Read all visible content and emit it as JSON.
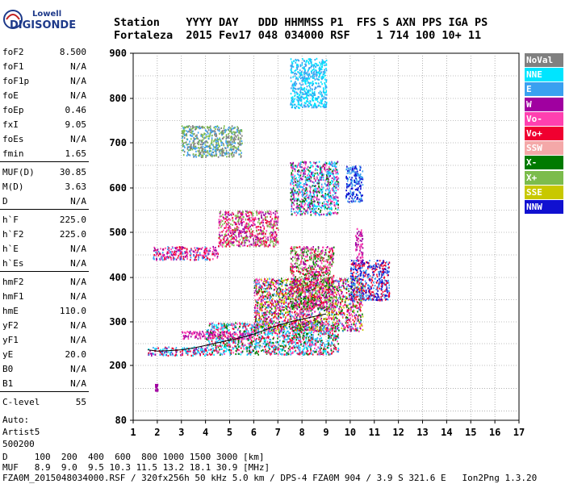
{
  "logo": {
    "line1": "Lowell",
    "line2": "DIGISONDE"
  },
  "header": {
    "line1": "Station    YYYY DAY   DDD HHMMSS P1  FFS S AXN PPS IGA PS",
    "line2": "Fortaleza  2015 Fev17 048 034000 RSF    1 714 100 10+ 11"
  },
  "params": {
    "group1": [
      {
        "k": "foF2",
        "v": "8.500"
      },
      {
        "k": "foF1",
        "v": "N/A"
      },
      {
        "k": "foF1p",
        "v": "N/A"
      },
      {
        "k": "foE",
        "v": "N/A"
      },
      {
        "k": "foEp",
        "v": "0.46"
      },
      {
        "k": "fxI",
        "v": "9.05"
      },
      {
        "k": "foEs",
        "v": "N/A"
      },
      {
        "k": "fmin",
        "v": "1.65"
      }
    ],
    "group2": [
      {
        "k": "MUF(D)",
        "v": "30.85"
      },
      {
        "k": "M(D)",
        "v": "3.63"
      },
      {
        "k": "D",
        "v": "N/A"
      }
    ],
    "group3": [
      {
        "k": "h`F",
        "v": "225.0"
      },
      {
        "k": "h`F2",
        "v": "225.0"
      },
      {
        "k": "h`E",
        "v": "N/A"
      },
      {
        "k": "h`Es",
        "v": "N/A"
      }
    ],
    "group4": [
      {
        "k": "hmF2",
        "v": "N/A"
      },
      {
        "k": "hmF1",
        "v": "N/A"
      },
      {
        "k": "hmE",
        "v": "110.0"
      },
      {
        "k": "yF2",
        "v": "N/A"
      },
      {
        "k": "yF1",
        "v": "N/A"
      },
      {
        "k": "yE",
        "v": "20.0"
      },
      {
        "k": "B0",
        "v": "N/A"
      },
      {
        "k": "B1",
        "v": "N/A"
      }
    ],
    "clevel": {
      "k": "C-level",
      "v": "55"
    },
    "auto": {
      "line1": "Auto:",
      "line2": "Artist5",
      "line3": "500200"
    }
  },
  "legend": [
    {
      "label": "NoVal",
      "color": "#808080"
    },
    {
      "label": "NNE",
      "color": "#00e5ff"
    },
    {
      "label": "E",
      "color": "#3aa0f0"
    },
    {
      "label": "W",
      "color": "#a000a0"
    },
    {
      "label": "Vo-",
      "color": "#ff40b0"
    },
    {
      "label": "Vo+",
      "color": "#f00030"
    },
    {
      "label": "SSW",
      "color": "#f4a8a8"
    },
    {
      "label": "X-",
      "color": "#007a00"
    },
    {
      "label": "X+",
      "color": "#7cbc4c"
    },
    {
      "label": "SSE",
      "color": "#c8c800"
    },
    {
      "label": "NNW",
      "color": "#1010d0"
    }
  ],
  "footer": {
    "line1": "D     100  200  400  600  800 1000 1500 3000 [km]",
    "line2": "MUF   8.9  9.0  9.5 10.3 11.5 13.2 18.1 30.9 [MHz]",
    "line3": "FZA0M_2015048034000.RSF / 320fx256h 50 kHz 5.0 km / DPS-4 FZA0M 904 / 3.9 S 321.6 E   Ion2Png 1.3.20"
  },
  "chart_data": {
    "type": "scatter",
    "xlim": [
      1,
      17
    ],
    "ylim": [
      80,
      900
    ],
    "x_ticks": [
      "1",
      "2",
      "3",
      "4",
      "5",
      "6",
      "7",
      "8",
      "9",
      "10",
      "11",
      "12",
      "13",
      "14",
      "15",
      "16",
      "17"
    ],
    "y_ticks": [
      "80",
      "200",
      "300",
      "400",
      "500",
      "600",
      "700",
      "800",
      "900"
    ],
    "y_tick_values": [
      80,
      200,
      300,
      400,
      500,
      600,
      700,
      800,
      900
    ],
    "grid": true,
    "trace_x": [
      1.6,
      2.0,
      2.5,
      3.0,
      3.5,
      4.0,
      4.5,
      5.0,
      5.5,
      6.0,
      6.5,
      7.0,
      7.5,
      8.0,
      8.5,
      9.0
    ],
    "trace_y": [
      236,
      233,
      234,
      236,
      240,
      246,
      252,
      258,
      264,
      272,
      282,
      292,
      300,
      306,
      312,
      318
    ],
    "trace_color": "#000000",
    "clusters": [
      {
        "x": [
          1.6,
          4.0
        ],
        "y": [
          224,
          244
        ],
        "colors": [
          "#3aa0f0",
          "#00e5ff",
          "#f00030",
          "#a000a0"
        ]
      },
      {
        "x": [
          4.0,
          9.5
        ],
        "y": [
          226,
          300
        ],
        "colors": [
          "#3aa0f0",
          "#00e5ff",
          "#f00030",
          "#ff40b0",
          "#007a00"
        ]
      },
      {
        "x": [
          3.0,
          6.0
        ],
        "y": [
          262,
          280
        ],
        "colors": [
          "#a000a0",
          "#ff40b0"
        ]
      },
      {
        "x": [
          6.0,
          10.5
        ],
        "y": [
          280,
          400
        ],
        "colors": [
          "#f00030",
          "#ff40b0",
          "#a000a0",
          "#3aa0f0",
          "#007a00",
          "#c8c800"
        ]
      },
      {
        "x": [
          7.5,
          9.3
        ],
        "y": [
          330,
          470
        ],
        "colors": [
          "#ff40b0",
          "#f00030",
          "#a000a0",
          "#7cbc4c",
          "#007a00"
        ]
      },
      {
        "x": [
          10.0,
          11.6
        ],
        "y": [
          350,
          440
        ],
        "colors": [
          "#1010d0",
          "#3aa0f0",
          "#f00030"
        ]
      },
      {
        "x": [
          1.8,
          4.5
        ],
        "y": [
          440,
          470
        ],
        "colors": [
          "#a000a0",
          "#f00030",
          "#ff40b0",
          "#3aa0f0"
        ]
      },
      {
        "x": [
          4.5,
          7.0
        ],
        "y": [
          470,
          550
        ],
        "colors": [
          "#a000a0",
          "#ff40b0",
          "#f00030",
          "#7cbc4c"
        ]
      },
      {
        "x": [
          7.5,
          9.5
        ],
        "y": [
          540,
          660
        ],
        "colors": [
          "#3aa0f0",
          "#00e5ff",
          "#a000a0",
          "#007a00",
          "#ff40b0"
        ]
      },
      {
        "x": [
          9.8,
          10.5
        ],
        "y": [
          570,
          650
        ],
        "colors": [
          "#1010d0",
          "#3aa0f0"
        ]
      },
      {
        "x": [
          3.0,
          5.5
        ],
        "y": [
          670,
          740
        ],
        "colors": [
          "#7cbc4c",
          "#808080",
          "#3aa0f0"
        ]
      },
      {
        "x": [
          7.5,
          9.0
        ],
        "y": [
          780,
          890
        ],
        "colors": [
          "#3aa0f0",
          "#00e5ff"
        ]
      },
      {
        "x": [
          10.2,
          10.5
        ],
        "y": [
          430,
          510
        ],
        "colors": [
          "#a000a0",
          "#ff40b0"
        ]
      },
      {
        "x": [
          1.9,
          2.0
        ],
        "y": [
          145,
          160
        ],
        "colors": [
          "#a000a0"
        ]
      }
    ]
  }
}
